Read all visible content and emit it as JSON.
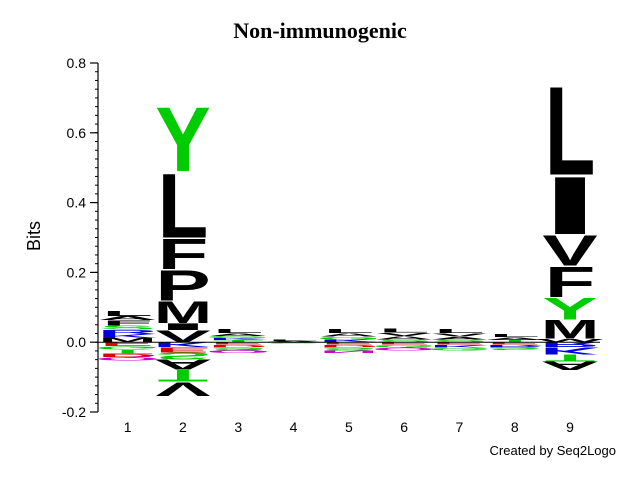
{
  "chart_data": {
    "type": "sequence-logo",
    "title": "Non-immunogenic",
    "ylabel": "Bits",
    "xlabel": "",
    "ylim": [
      -0.2,
      0.8
    ],
    "yticks": [
      -0.2,
      0.0,
      0.2,
      0.4,
      0.6,
      0.8
    ],
    "positions": [
      1,
      2,
      3,
      4,
      5,
      6,
      7,
      8,
      9
    ],
    "colors": {
      "hydrophobic": "#000000",
      "polar": "#00cc00",
      "basic": "#0000dd",
      "acidic": "#dd0000",
      "neutral": "#cc00cc"
    },
    "letters": [
      {
        "position": 1,
        "above": [
          {
            "aa": "M",
            "height": 0.012,
            "color": "#000000"
          },
          {
            "aa": "K",
            "height": 0.012,
            "color": "#0000dd"
          },
          {
            "aa": "R",
            "height": 0.012,
            "color": "#0000dd"
          },
          {
            "aa": "S",
            "height": 0.012,
            "color": "#00cc00"
          },
          {
            "aa": "F",
            "height": 0.015,
            "color": "#000000"
          },
          {
            "aa": "A",
            "height": 0.012,
            "color": "#000000"
          },
          {
            "aa": "L",
            "height": 0.015,
            "color": "#000000"
          }
        ],
        "below": [
          {
            "aa": "E",
            "height": 0.012,
            "color": "#dd0000"
          },
          {
            "aa": "G",
            "height": 0.01,
            "color": "#00cc00"
          },
          {
            "aa": "T",
            "height": 0.012,
            "color": "#00cc00"
          },
          {
            "aa": "D",
            "height": 0.01,
            "color": "#dd0000"
          },
          {
            "aa": "Q",
            "height": 0.01,
            "color": "#cc00cc"
          }
        ]
      },
      {
        "position": 2,
        "above": [
          {
            "aa": "V",
            "height": 0.035,
            "color": "#000000"
          },
          {
            "aa": "I",
            "height": 0.02,
            "color": "#000000"
          },
          {
            "aa": "M",
            "height": 0.065,
            "color": "#000000"
          },
          {
            "aa": "P",
            "height": 0.09,
            "color": "#000000"
          },
          {
            "aa": "F",
            "height": 0.09,
            "color": "#000000"
          },
          {
            "aa": "L",
            "height": 0.19,
            "color": "#000000"
          },
          {
            "aa": "Y",
            "height": 0.19,
            "color": "#00cc00"
          }
        ],
        "below": [
          {
            "aa": "K",
            "height": 0.015,
            "color": "#0000dd"
          },
          {
            "aa": "E",
            "height": 0.015,
            "color": "#dd0000"
          },
          {
            "aa": "S",
            "height": 0.02,
            "color": "#00cc00"
          },
          {
            "aa": "A",
            "height": 0.03,
            "color": "#000000"
          },
          {
            "aa": "T",
            "height": 0.035,
            "color": "#00cc00"
          },
          {
            "aa": "V",
            "height": 0.04,
            "color": "#000000"
          }
        ]
      },
      {
        "position": 3,
        "above": [
          {
            "aa": "T",
            "height": 0.006,
            "color": "#00cc00"
          },
          {
            "aa": "K",
            "height": 0.006,
            "color": "#0000dd"
          },
          {
            "aa": "G",
            "height": 0.006,
            "color": "#00cc00"
          },
          {
            "aa": "A",
            "height": 0.008,
            "color": "#000000"
          },
          {
            "aa": "L",
            "height": 0.012,
            "color": "#000000"
          }
        ],
        "below": [
          {
            "aa": "E",
            "height": 0.008,
            "color": "#dd0000"
          },
          {
            "aa": "D",
            "height": 0.008,
            "color": "#dd0000"
          },
          {
            "aa": "S",
            "height": 0.008,
            "color": "#00cc00"
          },
          {
            "aa": "Q",
            "height": 0.008,
            "color": "#cc00cc"
          }
        ]
      },
      {
        "position": 4,
        "above": [
          {
            "aa": "A",
            "height": 0.003,
            "color": "#000000"
          },
          {
            "aa": "L",
            "height": 0.003,
            "color": "#000000"
          }
        ],
        "below": [
          {
            "aa": "S",
            "height": 0.003,
            "color": "#00cc00"
          }
        ]
      },
      {
        "position": 5,
        "above": [
          {
            "aa": "K",
            "height": 0.008,
            "color": "#0000dd"
          },
          {
            "aa": "G",
            "height": 0.008,
            "color": "#00cc00"
          },
          {
            "aa": "A",
            "height": 0.01,
            "color": "#000000"
          },
          {
            "aa": "L",
            "height": 0.012,
            "color": "#000000"
          }
        ],
        "below": [
          {
            "aa": "E",
            "height": 0.008,
            "color": "#dd0000"
          },
          {
            "aa": "D",
            "height": 0.008,
            "color": "#dd0000"
          },
          {
            "aa": "S",
            "height": 0.008,
            "color": "#00cc00"
          },
          {
            "aa": "N",
            "height": 0.008,
            "color": "#cc00cc"
          }
        ]
      },
      {
        "position": 6,
        "above": [
          {
            "aa": "S",
            "height": 0.008,
            "color": "#00cc00"
          },
          {
            "aa": "A",
            "height": 0.01,
            "color": "#000000"
          },
          {
            "aa": "V",
            "height": 0.01,
            "color": "#000000"
          },
          {
            "aa": "L",
            "height": 0.012,
            "color": "#000000"
          }
        ],
        "below": [
          {
            "aa": "E",
            "height": 0.008,
            "color": "#dd0000"
          },
          {
            "aa": "G",
            "height": 0.008,
            "color": "#00cc00"
          },
          {
            "aa": "Q",
            "height": 0.008,
            "color": "#cc00cc"
          }
        ]
      },
      {
        "position": 7,
        "above": [
          {
            "aa": "S",
            "height": 0.008,
            "color": "#00cc00"
          },
          {
            "aa": "A",
            "height": 0.008,
            "color": "#000000"
          },
          {
            "aa": "V",
            "height": 0.01,
            "color": "#000000"
          },
          {
            "aa": "L",
            "height": 0.012,
            "color": "#000000"
          }
        ],
        "below": [
          {
            "aa": "E",
            "height": 0.008,
            "color": "#dd0000"
          },
          {
            "aa": "K",
            "height": 0.008,
            "color": "#0000dd"
          },
          {
            "aa": "G",
            "height": 0.008,
            "color": "#00cc00"
          }
        ]
      },
      {
        "position": 8,
        "above": [
          {
            "aa": "T",
            "height": 0.007,
            "color": "#00cc00"
          },
          {
            "aa": "A",
            "height": 0.008,
            "color": "#000000"
          },
          {
            "aa": "L",
            "height": 0.01,
            "color": "#000000"
          }
        ],
        "below": [
          {
            "aa": "E",
            "height": 0.008,
            "color": "#dd0000"
          },
          {
            "aa": "R",
            "height": 0.008,
            "color": "#0000dd"
          },
          {
            "aa": "S",
            "height": 0.006,
            "color": "#00cc00"
          }
        ]
      },
      {
        "position": 9,
        "above": [
          {
            "aa": "W",
            "height": 0.01,
            "color": "#000000"
          },
          {
            "aa": "M",
            "height": 0.055,
            "color": "#000000"
          },
          {
            "aa": "Y",
            "height": 0.065,
            "color": "#00cc00"
          },
          {
            "aa": "F",
            "height": 0.09,
            "color": "#000000"
          },
          {
            "aa": "V",
            "height": 0.09,
            "color": "#000000"
          },
          {
            "aa": "I",
            "height": 0.17,
            "color": "#000000"
          },
          {
            "aa": "L",
            "height": 0.26,
            "color": "#000000"
          }
        ],
        "below": [
          {
            "aa": "R",
            "height": 0.015,
            "color": "#0000dd"
          },
          {
            "aa": "K",
            "height": 0.02,
            "color": "#0000dd"
          },
          {
            "aa": "T",
            "height": 0.02,
            "color": "#00cc00"
          },
          {
            "aa": "A",
            "height": 0.025,
            "color": "#000000"
          }
        ]
      }
    ]
  },
  "credit": "Created by Seq2Logo"
}
